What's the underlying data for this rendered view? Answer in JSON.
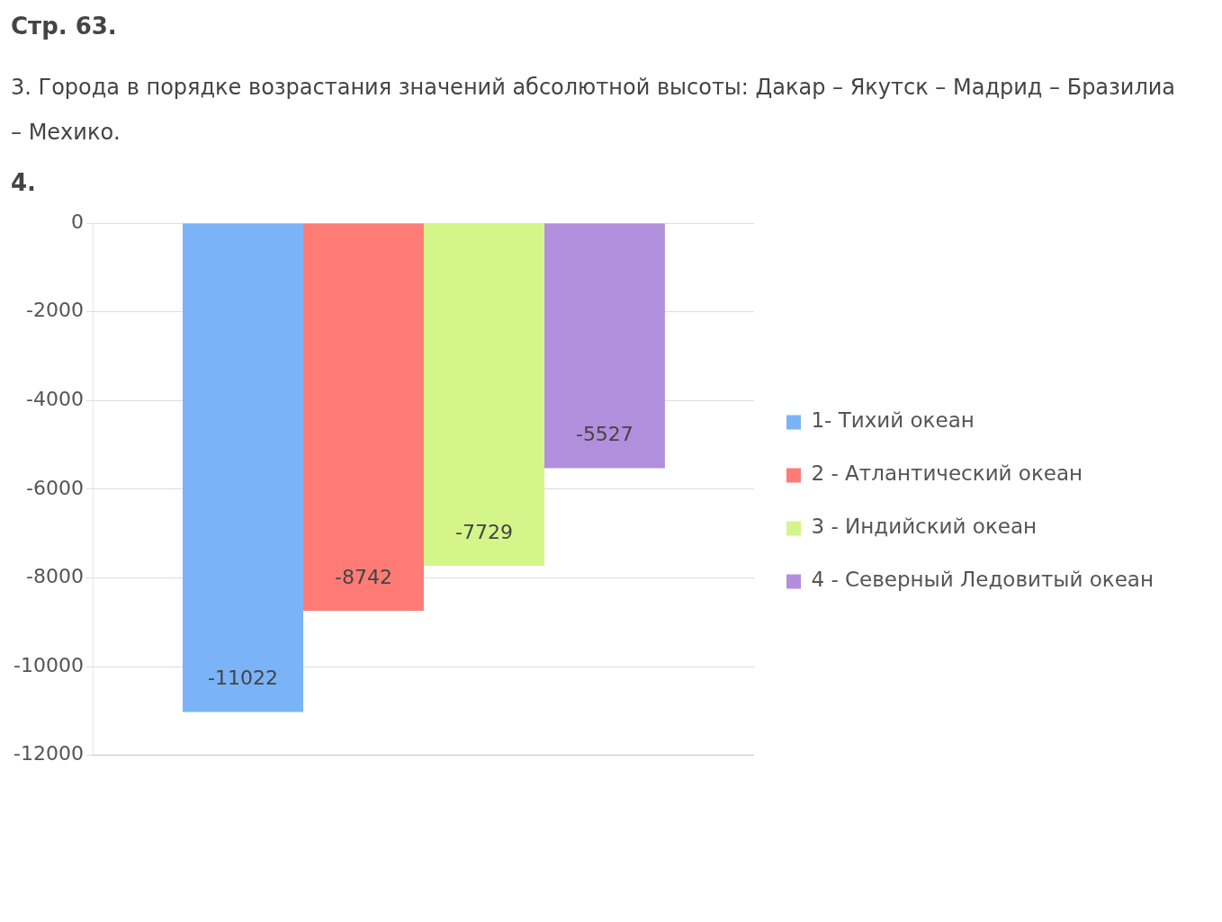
{
  "chart_data": {
    "type": "bar",
    "title": "Стр. 63.",
    "subtitle": "3. Города в порядке возрастания значений абсолютной высоты: Дакар – Якутск – Мадрид – Бразилиа – Мехико.",
    "annotations": [
      "4."
    ],
    "categories": [
      null
    ],
    "series": [
      {
        "name": "1- Тихий океан",
        "color": "#7ab3f7",
        "values": [
          -11022
        ]
      },
      {
        "name": "2 - Атлантический океан",
        "color": "#ff7b76",
        "values": [
          -8742
        ]
      },
      {
        "name": "3 - Индийский океан",
        "color": "#d4f58a",
        "values": [
          -7729
        ]
      },
      {
        "name": "4 - Северный Ледовитый океан",
        "color": "#b28fdc",
        "values": [
          -5527
        ]
      }
    ],
    "ylim": [
      -12000,
      0
    ],
    "yticks": [
      -12000,
      -10000,
      -8000,
      -6000,
      -4000,
      -2000,
      0
    ],
    "grid": "y",
    "legend": "right",
    "data_labels": true
  }
}
